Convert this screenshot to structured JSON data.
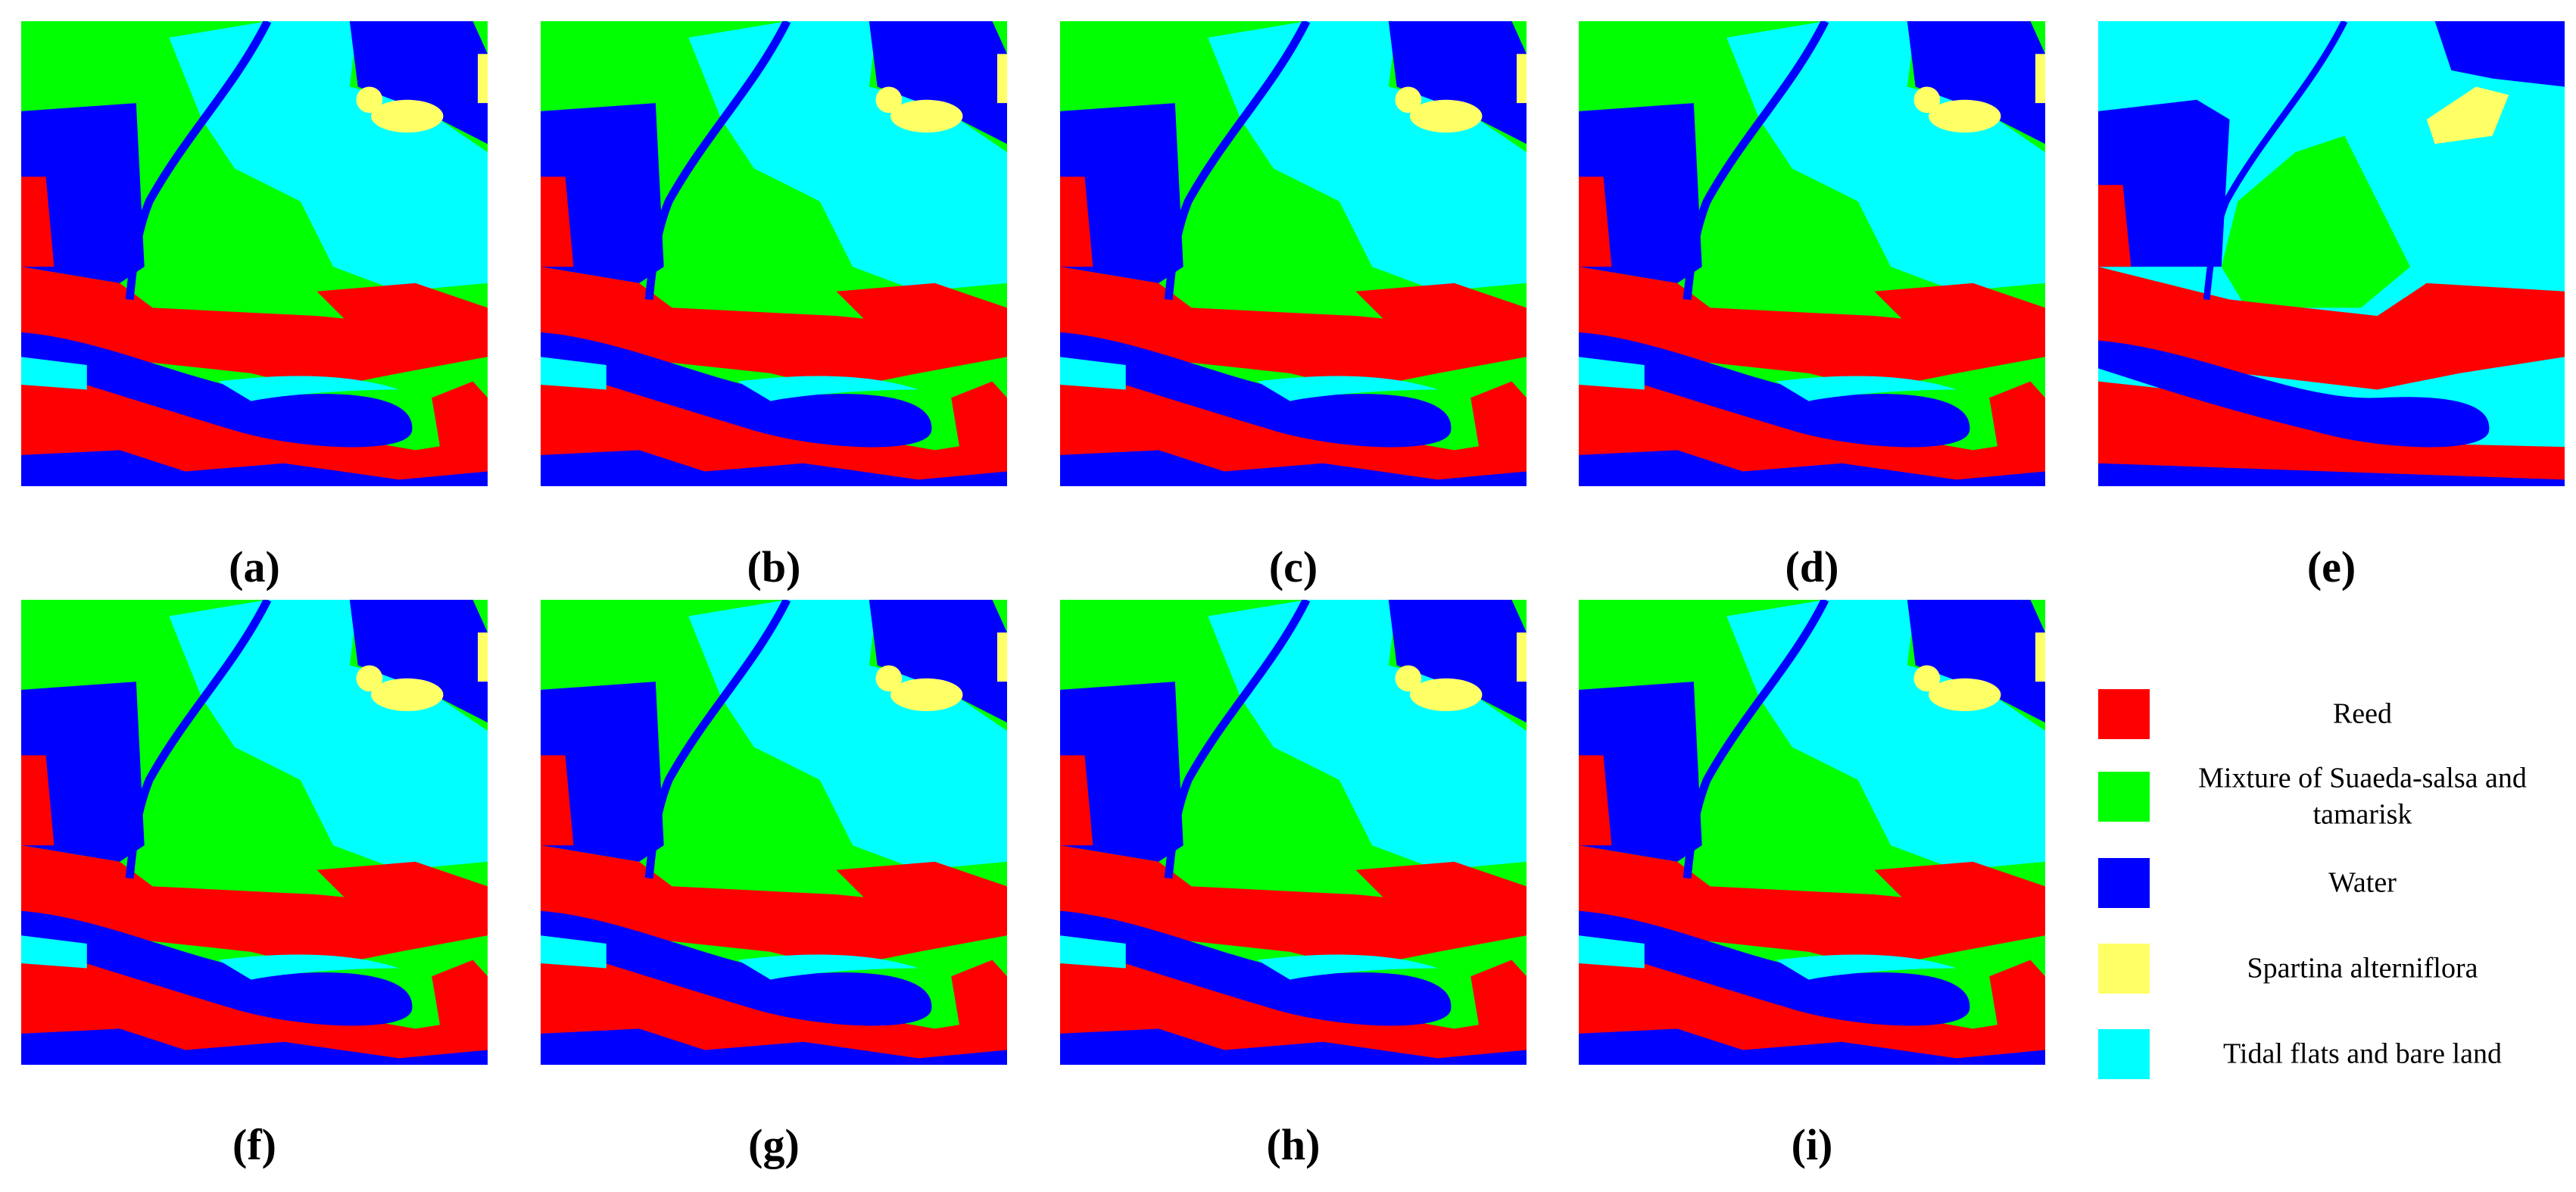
{
  "figure": {
    "panels": [
      {
        "label": "(a)"
      },
      {
        "label": "(b)"
      },
      {
        "label": "(c)"
      },
      {
        "label": "(d)"
      },
      {
        "label": "(e)"
      },
      {
        "label": "(f)"
      },
      {
        "label": "(g)"
      },
      {
        "label": "(h)"
      },
      {
        "label": "(i)"
      }
    ],
    "legend": [
      {
        "name": "Reed",
        "color": "#ff0000"
      },
      {
        "name": "Mixture of Suaeda-salsa and tamarisk",
        "color": "#00ff00"
      },
      {
        "name": "Water",
        "color": "#0000ff"
      },
      {
        "name": "Spartina alterniflora",
        "color": "#ffff66"
      },
      {
        "name": "Tidal flats and bare land",
        "color": "#00ffff"
      }
    ]
  }
}
